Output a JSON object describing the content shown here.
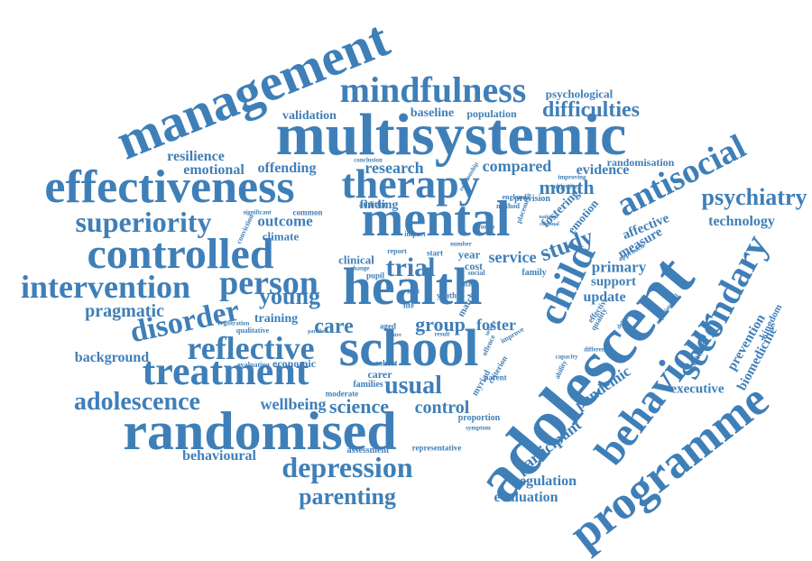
{
  "color": "#3f7fb8",
  "words": [
    "management",
    "multisystemic",
    "mindfulness",
    "psychological",
    "difficulties",
    "validation",
    "baseline",
    "population",
    "effectiveness",
    "therapy",
    "mental",
    "antisocial",
    "psychiatry",
    "technology",
    "superiority",
    "controlled",
    "intervention",
    "person",
    "health",
    "child",
    "adolescent",
    "behaviour",
    "secondary",
    "programme",
    "school",
    "randomised",
    "treatment",
    "reflective",
    "disorder",
    "young",
    "pragmatic",
    "adolescence",
    "depression",
    "parenting",
    "behavioural",
    "background",
    "wellbeing",
    "science",
    "usual",
    "control",
    "care",
    "group",
    "foster",
    "trial",
    "study",
    "month",
    "compared",
    "research",
    "evidence",
    "randomisation",
    "resilience",
    "emotional",
    "offending",
    "finding",
    "outcome",
    "climate",
    "clinical",
    "service",
    "year",
    "cost",
    "primary",
    "support",
    "update",
    "measure",
    "affective",
    "fostering",
    "emotion",
    "pandemic",
    "participant",
    "regulation",
    "evaluation",
    "executive",
    "prevention",
    "biomedicine",
    "conduct",
    "kingdom",
    "training",
    "economic",
    "assessment",
    "representative",
    "proportion",
    "myriad",
    "carer",
    "families",
    "moderate",
    "evaluating",
    "qualitative",
    "registration",
    "significant",
    "common",
    "addition",
    "conviction",
    "provision",
    "placement",
    "england",
    "method",
    "relationship",
    "conclusion",
    "report",
    "impact",
    "pupil",
    "start",
    "aged",
    "life",
    "level",
    "result",
    "cohort",
    "centre",
    "parallel",
    "improving",
    "objective",
    "approach",
    "quality",
    "effective",
    "difference",
    "experimental",
    "delivery",
    "capacity",
    "symptom",
    "criterion",
    "parent",
    "national",
    "criminal",
    "studies",
    "number",
    "data",
    "change",
    "social",
    "youth",
    "offence",
    "improve",
    "match",
    "severe",
    "ability",
    "family"
  ]
}
